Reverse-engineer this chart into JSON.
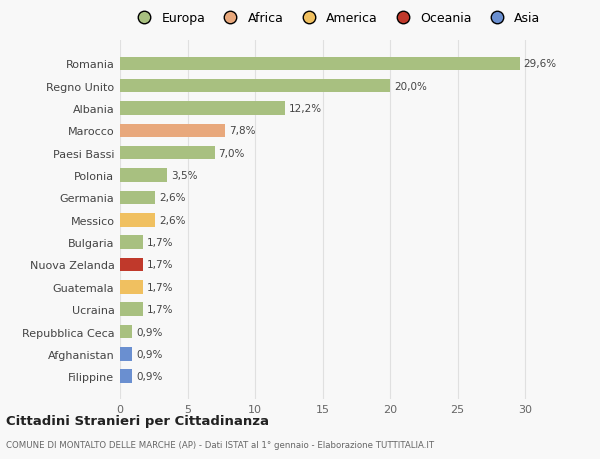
{
  "categories": [
    "Romania",
    "Regno Unito",
    "Albania",
    "Marocco",
    "Paesi Bassi",
    "Polonia",
    "Germania",
    "Messico",
    "Bulgaria",
    "Nuova Zelanda",
    "Guatemala",
    "Ucraina",
    "Repubblica Ceca",
    "Afghanistan",
    "Filippine"
  ],
  "values": [
    29.6,
    20.0,
    12.2,
    7.8,
    7.0,
    3.5,
    2.6,
    2.6,
    1.7,
    1.7,
    1.7,
    1.7,
    0.9,
    0.9,
    0.9
  ],
  "labels": [
    "29,6%",
    "20,0%",
    "12,2%",
    "7,8%",
    "7,0%",
    "3,5%",
    "2,6%",
    "2,6%",
    "1,7%",
    "1,7%",
    "1,7%",
    "1,7%",
    "0,9%",
    "0,9%",
    "0,9%"
  ],
  "colors": [
    "#a8c080",
    "#a8c080",
    "#a8c080",
    "#e8a87c",
    "#a8c080",
    "#a8c080",
    "#a8c080",
    "#f0c060",
    "#a8c080",
    "#c0392b",
    "#f0c060",
    "#a8c080",
    "#a8c080",
    "#6a8fd0",
    "#6a8fd0"
  ],
  "legend_labels": [
    "Europa",
    "Africa",
    "America",
    "Oceania",
    "Asia"
  ],
  "legend_colors": [
    "#a8c080",
    "#e8a87c",
    "#f0c060",
    "#c0392b",
    "#6a8fd0"
  ],
  "title": "Cittadini Stranieri per Cittadinanza",
  "subtitle": "COMUNE DI MONTALTO DELLE MARCHE (AP) - Dati ISTAT al 1° gennaio - Elaborazione TUTTITALIA.IT",
  "xlim": [
    0,
    32
  ],
  "xticks": [
    0,
    5,
    10,
    15,
    20,
    25,
    30
  ],
  "bg_color": "#f8f8f8",
  "grid_color": "#e0e0e0",
  "bar_height": 0.6
}
